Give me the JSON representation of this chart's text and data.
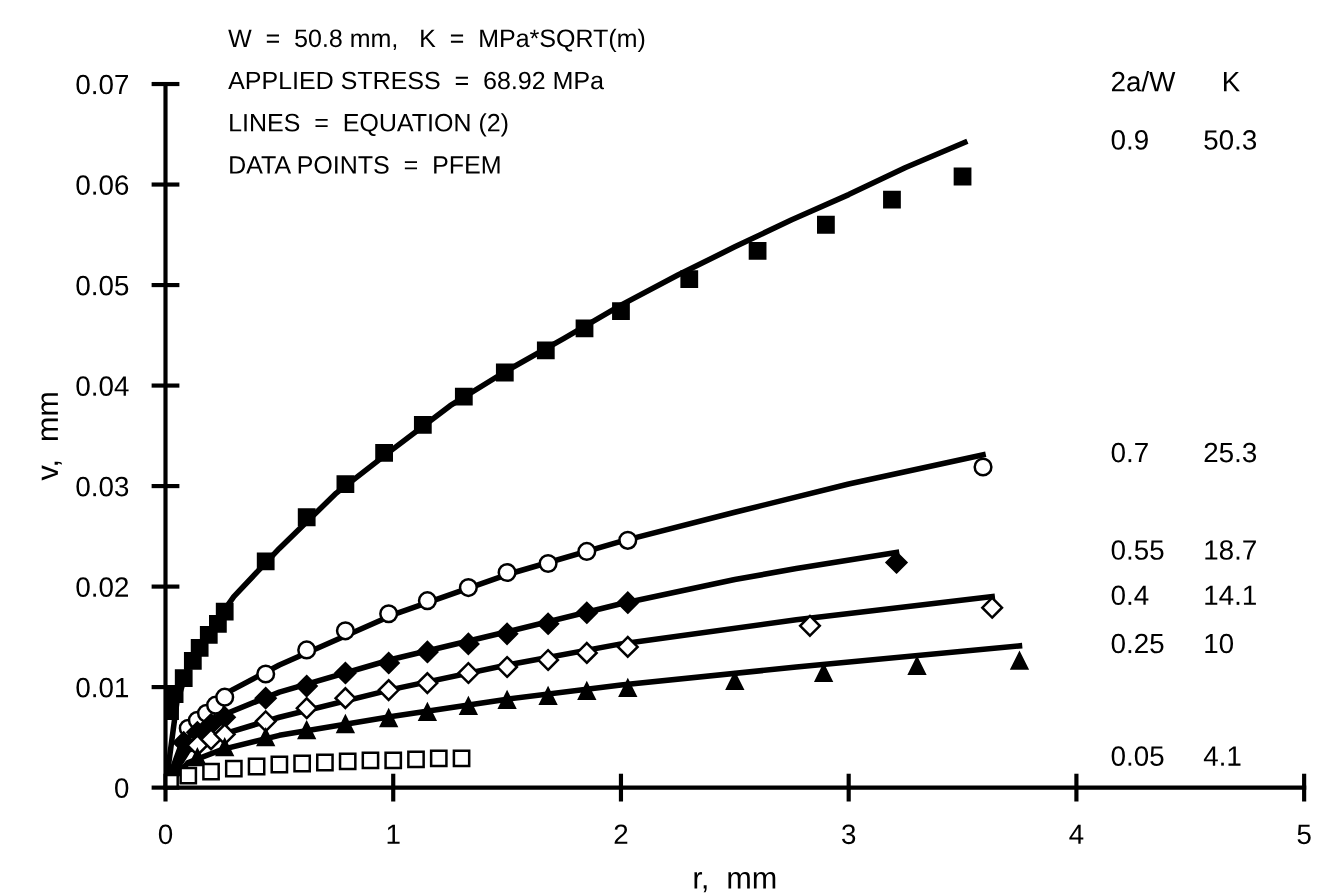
{
  "chart_data": {
    "type": "line",
    "xlabel": "r,  mm",
    "ylabel": "v,  mm",
    "annotations": [
      "W  =  50.8 mm,   K  =  MPa*SQRT(m)",
      "APPLIED STRESS  =  68.92 MPa",
      "LINES  =  EQUATION (2)",
      "DATA POINTS  =  PFEM"
    ],
    "legend_title": "2a/W      K",
    "xlim": [
      0,
      5
    ],
    "ylim": [
      0,
      0.07
    ],
    "xticks": [
      0,
      1,
      2,
      3,
      4,
      5
    ],
    "yticks": [
      0,
      0.01,
      0.02,
      0.03,
      0.04,
      0.05,
      0.06,
      0.07
    ],
    "grid": false,
    "legend": "right",
    "series": [
      {
        "name": "0.9       50.3",
        "color": "#000000",
        "line_style": "solid",
        "x": [
          0,
          0.05,
          0.1,
          0.2,
          0.3,
          0.5,
          0.75,
          1.0,
          1.25,
          1.5,
          1.75,
          2.0,
          2.25,
          2.5,
          2.75,
          3.0,
          3.25,
          3.51
        ],
        "values": [
          0,
          0.0085,
          0.012,
          0.0158,
          0.019,
          0.0238,
          0.0293,
          0.0337,
          0.038,
          0.0415,
          0.0447,
          0.048,
          0.051,
          0.0538,
          0.0565,
          0.059,
          0.0617,
          0.0642
        ]
      },
      {
        "type": "scatter",
        "color": "#000000",
        "marker": "square",
        "x": [
          0.02,
          0.04,
          0.08,
          0.12,
          0.15,
          0.19,
          0.23,
          0.26,
          0.44,
          0.62,
          0.79,
          0.96,
          1.13,
          1.31,
          1.49,
          1.67,
          1.84,
          2.0,
          2.3,
          2.6,
          2.9,
          3.19,
          3.5
        ],
        "values": [
          0.0076,
          0.0093,
          0.0109,
          0.0126,
          0.0139,
          0.0152,
          0.0163,
          0.0175,
          0.0225,
          0.0269,
          0.0302,
          0.0333,
          0.0361,
          0.0389,
          0.0413,
          0.0435,
          0.0457,
          0.0474,
          0.0506,
          0.0534,
          0.056,
          0.0585,
          0.0608
        ]
      },
      {
        "name": "0.7       25.3",
        "color": "#000000",
        "line_style": "solid",
        "x": [
          0,
          0.1,
          0.25,
          0.5,
          1.0,
          1.5,
          2.0,
          2.5,
          3.0,
          3.59
        ],
        "values": [
          0,
          0.0062,
          0.0092,
          0.0122,
          0.0172,
          0.0212,
          0.0245,
          0.0274,
          0.0302,
          0.0331
        ]
      },
      {
        "type": "scatter",
        "color": "#ffffff",
        "marker": "circle",
        "x": [
          0.1,
          0.14,
          0.18,
          0.22,
          0.26,
          0.44,
          0.62,
          0.79,
          0.98,
          1.15,
          1.33,
          1.5,
          1.68,
          1.85,
          2.03,
          3.59
        ],
        "values": [
          0.0059,
          0.0067,
          0.0074,
          0.0082,
          0.009,
          0.0113,
          0.0137,
          0.0156,
          0.0173,
          0.0186,
          0.0199,
          0.0214,
          0.0223,
          0.0235,
          0.0246,
          0.0319
        ]
      },
      {
        "name": "0.55     18.7",
        "color": "#000000",
        "line_style": "solid",
        "x": [
          0,
          0.1,
          0.25,
          0.5,
          1.0,
          1.5,
          2.0,
          2.5,
          2.77,
          3.21
        ],
        "values": [
          0,
          0.005,
          0.0072,
          0.0095,
          0.0128,
          0.0155,
          0.0183,
          0.0207,
          0.0218,
          0.0234
        ]
      },
      {
        "type": "scatter",
        "color": "#000000",
        "marker": "diamond",
        "x": [
          0.08,
          0.14,
          0.2,
          0.26,
          0.44,
          0.62,
          0.79,
          0.98,
          1.15,
          1.33,
          1.5,
          1.68,
          1.85,
          2.03,
          3.21
        ],
        "values": [
          0.0045,
          0.0055,
          0.0063,
          0.007,
          0.0089,
          0.0101,
          0.0114,
          0.0124,
          0.0135,
          0.0143,
          0.0153,
          0.0163,
          0.0174,
          0.0184,
          0.0224
        ]
      },
      {
        "name": "0.4       14.1",
        "color": "#000000",
        "line_style": "solid",
        "x": [
          0,
          0.1,
          0.25,
          0.5,
          1.0,
          1.5,
          2.0,
          2.77,
          3.63
        ],
        "values": [
          0,
          0.0037,
          0.0053,
          0.007,
          0.0098,
          0.0122,
          0.0143,
          0.0167,
          0.019
        ]
      },
      {
        "type": "scatter",
        "color": "#ffffff",
        "marker": "diamond",
        "x": [
          0.14,
          0.2,
          0.26,
          0.44,
          0.62,
          0.79,
          0.98,
          1.15,
          1.33,
          1.5,
          1.68,
          1.85,
          2.03,
          2.83,
          3.63
        ],
        "values": [
          0.0042,
          0.0048,
          0.0053,
          0.0066,
          0.0079,
          0.0089,
          0.0097,
          0.0104,
          0.0114,
          0.012,
          0.0127,
          0.0134,
          0.014,
          0.0161,
          0.0179
        ]
      },
      {
        "name": "0.25     10",
        "color": "#000000",
        "line_style": "solid",
        "x": [
          0,
          0.1,
          0.25,
          0.5,
          1.0,
          1.5,
          2.0,
          2.77,
          3.75
        ],
        "values": [
          0,
          0.0025,
          0.0038,
          0.0052,
          0.0071,
          0.0088,
          0.0102,
          0.012,
          0.0141
        ]
      },
      {
        "type": "scatter",
        "color": "#000000",
        "marker": "triangle",
        "x": [
          0.14,
          0.26,
          0.44,
          0.62,
          0.79,
          0.98,
          1.15,
          1.33,
          1.5,
          1.68,
          1.85,
          2.03,
          2.5,
          2.89,
          3.3,
          3.75
        ],
        "values": [
          0.003,
          0.004,
          0.005,
          0.0057,
          0.0063,
          0.0069,
          0.0075,
          0.0081,
          0.0087,
          0.0091,
          0.0096,
          0.0099,
          0.0106,
          0.0114,
          0.0121,
          0.0126
        ]
      },
      {
        "type": "scatter",
        "name": "0.05     4.1",
        "color": "#ffffff",
        "marker": "square",
        "x": [
          0.02,
          0.1,
          0.2,
          0.3,
          0.4,
          0.5,
          0.6,
          0.7,
          0.8,
          0.9,
          1.0,
          1.1,
          1.2,
          1.3
        ],
        "values": [
          0.0005,
          0.0012,
          0.0016,
          0.0019,
          0.0021,
          0.0023,
          0.0024,
          0.0025,
          0.0026,
          0.0027,
          0.0027,
          0.0028,
          0.0029,
          0.0029
        ]
      }
    ]
  }
}
